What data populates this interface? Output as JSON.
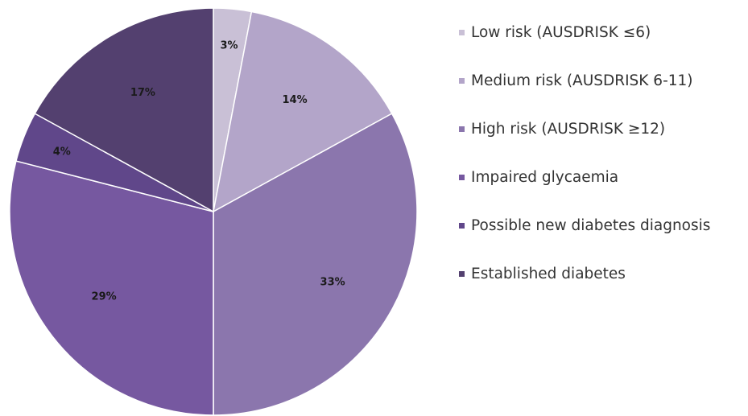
{
  "chart_data": {
    "type": "pie",
    "title": "",
    "categories": [
      "Low risk (AUSDRISK ≤6)",
      "Medium risk (AUSDRISK 6-11)",
      "High risk (AUSDRISK ≥12)",
      "Impaired glycaemia",
      "Possible new diabetes diagnosis",
      "Established diabetes"
    ],
    "values": [
      3,
      14,
      33,
      29,
      4,
      17
    ],
    "labels": [
      "3%",
      "14%",
      "33%",
      "29%",
      "4%",
      "17%"
    ],
    "colors": [
      "#c9c0d6",
      "#b3a5c9",
      "#8b76ad",
      "#7658a0",
      "#60478a",
      "#53406f"
    ],
    "legend_position": "right",
    "start": "12 o'clock",
    "direction": "clockwise"
  }
}
